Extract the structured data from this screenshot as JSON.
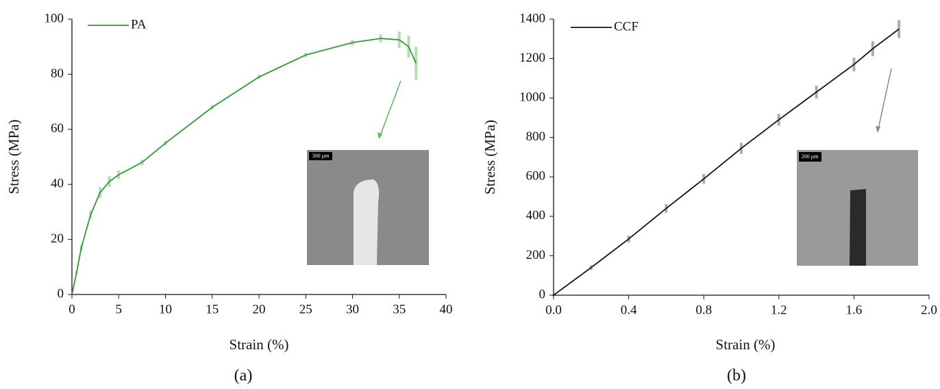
{
  "chart_data": [
    {
      "type": "line",
      "x_label": "Strain (%)",
      "y_label": "Stress (MPa)",
      "caption": "(a)",
      "inset_label": "300 µm",
      "x": [
        0,
        0.5,
        1,
        2,
        3,
        4,
        5,
        7.5,
        10,
        15,
        20,
        25,
        30,
        33,
        35,
        36,
        36.8
      ],
      "series": [
        {
          "name": "PA",
          "color": "#2e9a2e",
          "values": [
            0,
            8,
            17,
            29,
            37,
            41,
            43.5,
            48,
            55,
            68,
            79,
            87,
            91.5,
            93,
            92.5,
            90,
            84
          ],
          "errors": [
            0,
            0.5,
            1,
            1.5,
            2,
            2,
            1.5,
            1,
            0.8,
            0.8,
            0.8,
            0.8,
            1,
            1.5,
            3,
            4,
            6
          ]
        }
      ],
      "xlim": [
        0,
        40
      ],
      "ylim": [
        0,
        100
      ],
      "xticks": [
        0,
        5,
        10,
        15,
        20,
        25,
        30,
        35,
        40
      ],
      "yticks": [
        0,
        20,
        40,
        60,
        80,
        100
      ],
      "grid": false
    },
    {
      "type": "line",
      "x_label": "Strain (%)",
      "y_label": "Stress (MPa)",
      "caption": "(b)",
      "inset_label": "200 µm",
      "x": [
        0,
        0.2,
        0.4,
        0.6,
        0.8,
        1.0,
        1.2,
        1.4,
        1.6,
        1.7,
        1.84
      ],
      "series": [
        {
          "name": "CCF",
          "color": "#111111",
          "values": [
            0,
            140,
            285,
            440,
            590,
            745,
            890,
            1030,
            1170,
            1250,
            1350
          ],
          "errors": [
            5,
            12,
            18,
            22,
            25,
            28,
            30,
            32,
            35,
            38,
            45
          ]
        }
      ],
      "xlim": [
        0,
        2.0
      ],
      "ylim": [
        0,
        1400
      ],
      "xticks": [
        {
          "value": 0,
          "label": "0.0"
        },
        0.4,
        0.8,
        1.2,
        1.6,
        {
          "value": 2,
          "label": "2.0"
        }
      ],
      "yticks": [
        0,
        200,
        400,
        600,
        800,
        1000,
        1200,
        1400
      ],
      "grid": false
    }
  ]
}
